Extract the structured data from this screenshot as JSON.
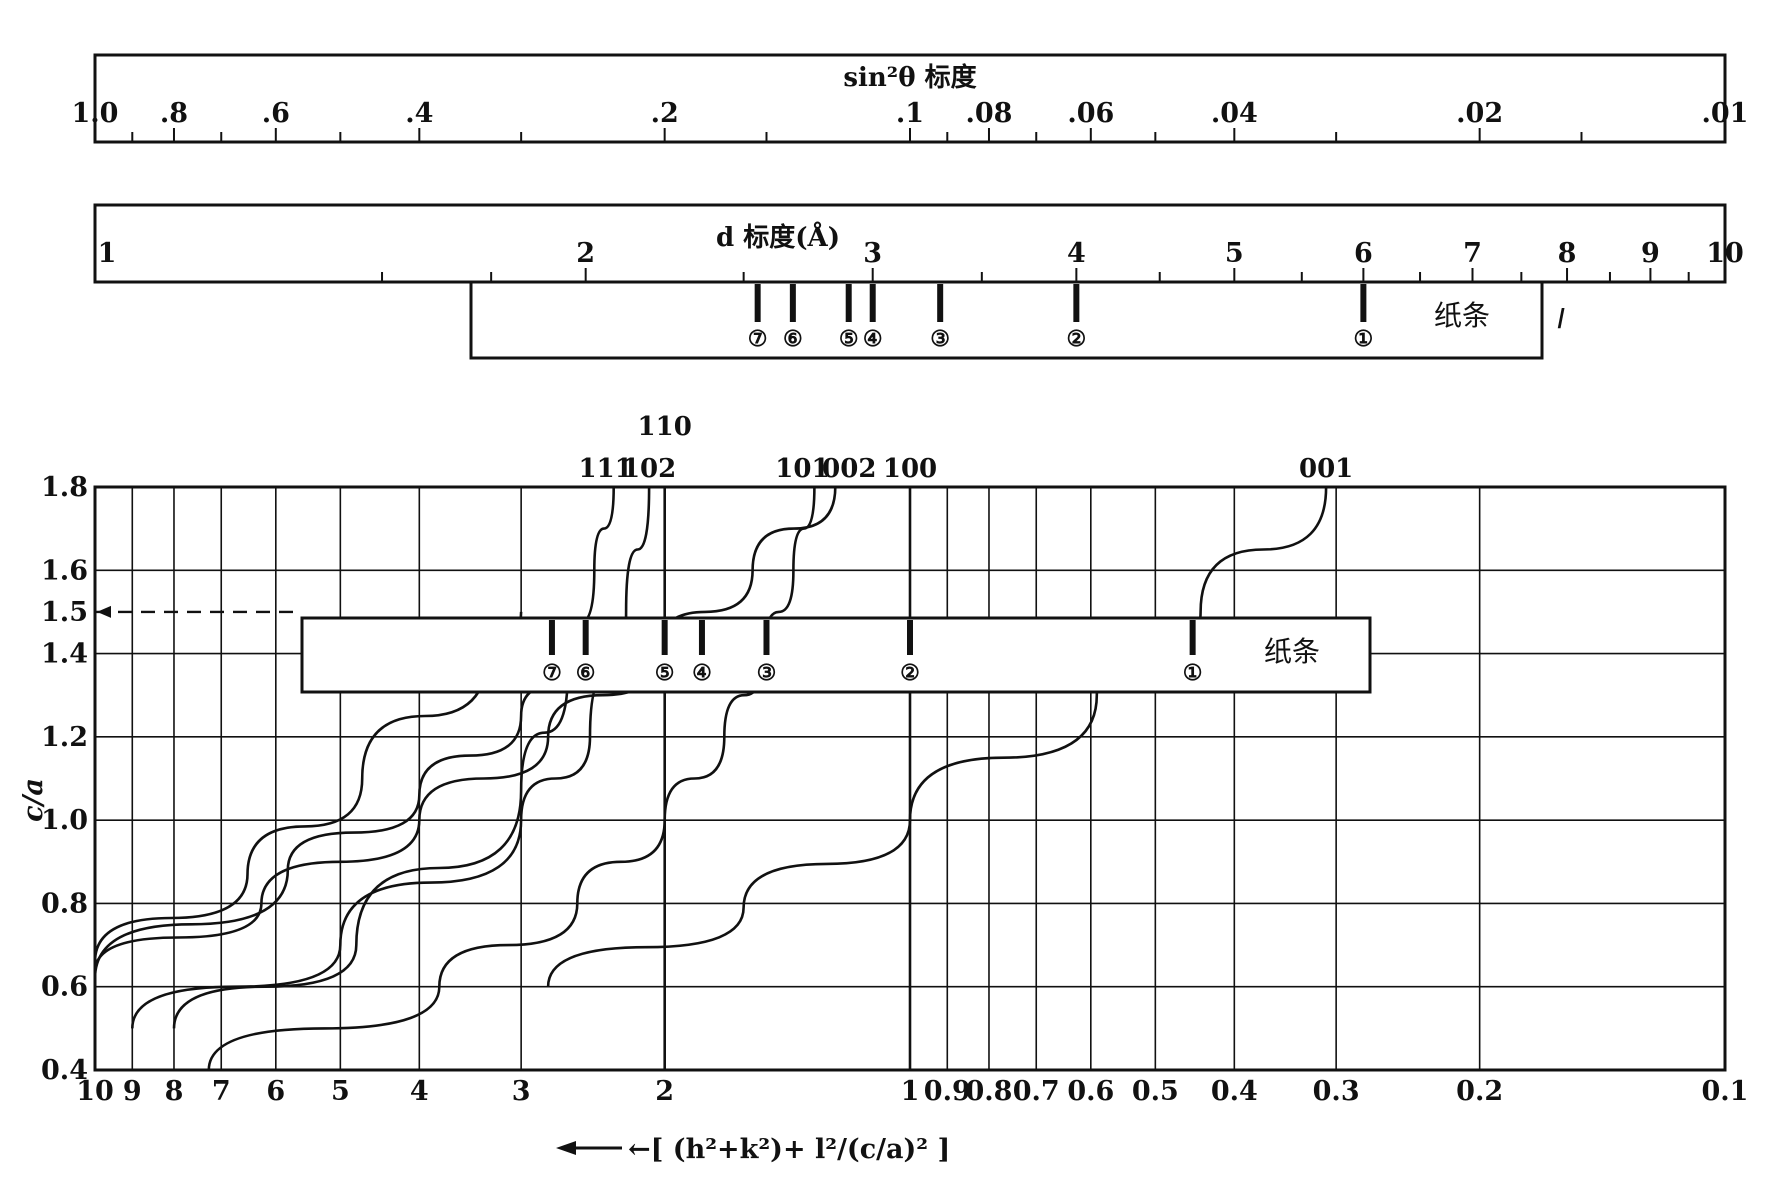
{
  "sin2_scale": {
    "title": "sin²θ  标度",
    "ticks": [
      {
        "v": 1.0,
        "label": "1.0"
      },
      {
        "v": 0.8,
        "label": ".8"
      },
      {
        "v": 0.6,
        "label": ".6"
      },
      {
        "v": 0.4,
        "label": ".4"
      },
      {
        "v": 0.2,
        "label": ".2"
      },
      {
        "v": 0.1,
        "label": ".1"
      },
      {
        "v": 0.08,
        "label": ".08"
      },
      {
        "v": 0.06,
        "label": ".06"
      },
      {
        "v": 0.04,
        "label": ".04"
      },
      {
        "v": 0.02,
        "label": ".02"
      },
      {
        "v": 0.01,
        "label": ".01"
      }
    ],
    "minor_ticks": [
      0.9,
      0.7,
      0.5,
      0.3,
      0.15,
      0.09,
      0.07,
      0.05,
      0.03,
      0.015
    ]
  },
  "d_scale": {
    "title": "d 标度(Å)",
    "ticks": [
      {
        "v": 1,
        "label": "1"
      },
      {
        "v": 2,
        "label": "2"
      },
      {
        "v": 3,
        "label": "3"
      },
      {
        "v": 4,
        "label": "4"
      },
      {
        "v": 5,
        "label": "5"
      },
      {
        "v": 6,
        "label": "6"
      },
      {
        "v": 7,
        "label": "7"
      },
      {
        "v": 8,
        "label": "8"
      },
      {
        "v": 9,
        "label": "9"
      },
      {
        "v": 10,
        "label": "10"
      }
    ],
    "minor_ticks": [
      1.5,
      1.75,
      2.5,
      3.5,
      4.5,
      5.5,
      6.5,
      7.5,
      8.5,
      9.5
    ]
  },
  "strip_upper": {
    "label": "纸条",
    "side_label": "I",
    "marks": [
      {
        "n": "⑦",
        "d": 2.55
      },
      {
        "n": "⑥",
        "d": 2.68
      },
      {
        "n": "⑤",
        "d": 2.9
      },
      {
        "n": "④",
        "d": 3.0
      },
      {
        "n": "③",
        "d": 3.3
      },
      {
        "n": "②",
        "d": 4.0
      },
      {
        "n": "①",
        "d": 6.0
      }
    ]
  },
  "strip_lower": {
    "label": "纸条",
    "marks": [
      {
        "n": "⑦",
        "x": 2.75
      },
      {
        "n": "⑥",
        "x": 2.5
      },
      {
        "n": "⑤",
        "x": 2.0
      },
      {
        "n": "④",
        "x": 1.8
      },
      {
        "n": "③",
        "x": 1.5
      },
      {
        "n": "②",
        "x": 1.0
      },
      {
        "n": "①",
        "x": 0.45
      }
    ]
  },
  "chart_data": {
    "type": "line",
    "ylabel": "c/a",
    "xlabel": "←[ (h²+k²)+ l²/(c/a)² ]",
    "xscale": "log",
    "x_direction": "decreasing",
    "x_range": [
      10,
      0.1
    ],
    "ylim": [
      0.4,
      1.8
    ],
    "grid": true,
    "x_ticks": [
      {
        "v": 10,
        "label": "10"
      },
      {
        "v": 9,
        "label": "9"
      },
      {
        "v": 8,
        "label": "8"
      },
      {
        "v": 7,
        "label": "7"
      },
      {
        "v": 6,
        "label": "6"
      },
      {
        "v": 5,
        "label": "5"
      },
      {
        "v": 4,
        "label": "4"
      },
      {
        "v": 3,
        "label": "3"
      },
      {
        "v": 2,
        "label": "2"
      },
      {
        "v": 1,
        "label": "1"
      },
      {
        "v": 0.9,
        "label": "0.9"
      },
      {
        "v": 0.8,
        "label": "0.8"
      },
      {
        "v": 0.7,
        "label": "0.7"
      },
      {
        "v": 0.6,
        "label": "0.6"
      },
      {
        "v": 0.5,
        "label": "0.5"
      },
      {
        "v": 0.4,
        "label": "0.4"
      },
      {
        "v": 0.3,
        "label": "0.3"
      },
      {
        "v": 0.2,
        "label": "0.2"
      },
      {
        "v": 0.1,
        "label": "0.1"
      }
    ],
    "y_ticks": [
      {
        "v": 1.8,
        "label": "1.8"
      },
      {
        "v": 1.6,
        "label": "1.6"
      },
      {
        "v": 1.5,
        "label": "1.5"
      },
      {
        "v": 1.4,
        "label": "1.4"
      },
      {
        "v": 1.2,
        "label": "1.2"
      },
      {
        "v": 1.0,
        "label": "1.0"
      },
      {
        "v": 0.8,
        "label": "0.8"
      },
      {
        "v": 0.6,
        "label": "0.6"
      },
      {
        "v": 0.4,
        "label": "0.4"
      }
    ],
    "y_grid": [
      0.4,
      0.6,
      0.8,
      1.0,
      1.2,
      1.4,
      1.6,
      1.8
    ],
    "reference_line": {
      "y": 1.5,
      "style": "dashed"
    },
    "series": [
      {
        "name": "001",
        "points": [
          [
            2.78,
            0.6
          ],
          [
            1.6,
            0.79
          ],
          [
            1.0,
            1.0
          ],
          [
            0.59,
            1.3
          ],
          [
            0.44,
            1.5
          ],
          [
            0.3086,
            1.8
          ]
        ]
      },
      {
        "name": "100",
        "points": [
          [
            1.0,
            0.4
          ],
          [
            1.0,
            1.8
          ]
        ]
      },
      {
        "name": "002",
        "points": [
          [
            11.1,
            0.6
          ],
          [
            6.25,
            0.8
          ],
          [
            4.0,
            1.0
          ],
          [
            2.78,
            1.2
          ],
          [
            2.04,
            1.4
          ],
          [
            1.56,
            1.6
          ],
          [
            1.235,
            1.8
          ]
        ]
      },
      {
        "name": "101",
        "points": [
          [
            7.25,
            0.4
          ],
          [
            3.78,
            0.6
          ],
          [
            2.56,
            0.8
          ],
          [
            2.0,
            1.0
          ],
          [
            1.69,
            1.2
          ],
          [
            1.51,
            1.4
          ],
          [
            1.39,
            1.6
          ],
          [
            1.31,
            1.8
          ]
        ]
      },
      {
        "name": "110",
        "points": [
          [
            2.0,
            0.4
          ],
          [
            2.0,
            1.8
          ]
        ]
      },
      {
        "name": "102",
        "points": [
          [
            9.0,
            0.5
          ],
          [
            5.0,
            0.7
          ],
          [
            3.0,
            1.0
          ],
          [
            2.47,
            1.2
          ],
          [
            2.23,
            1.5
          ],
          [
            2.09,
            1.8
          ]
        ]
      },
      {
        "name": "111",
        "points": [
          [
            8.0,
            0.5
          ],
          [
            4.78,
            0.7
          ],
          [
            3.0,
            1.07
          ],
          [
            2.63,
            1.35
          ],
          [
            2.44,
            1.6
          ],
          [
            2.31,
            1.8
          ]
        ]
      },
      {
        "name": "",
        "points": [
          [
            10.0,
            0.66
          ],
          [
            6.5,
            0.87
          ],
          [
            4.7,
            1.1
          ],
          [
            3.3,
            1.4
          ],
          [
            3.0,
            1.5
          ]
        ]
      },
      {
        "name": "",
        "points": [
          [
            10.0,
            0.62
          ],
          [
            5.8,
            0.88
          ],
          [
            4.0,
            1.06
          ],
          [
            3.0,
            1.25
          ],
          [
            2.47,
            1.4
          ]
        ]
      }
    ],
    "top_labels": [
      {
        "label": "110",
        "x": 2.0
      },
      {
        "label": "111",
        "x": 2.31
      },
      {
        "label": "102",
        "x": 2.09
      },
      {
        "label": "101",
        "x": 1.31
      },
      {
        "label": "002",
        "x": 1.235
      },
      {
        "label": "100",
        "x": 1.0
      },
      {
        "label": "001",
        "x": 0.3086
      }
    ]
  }
}
